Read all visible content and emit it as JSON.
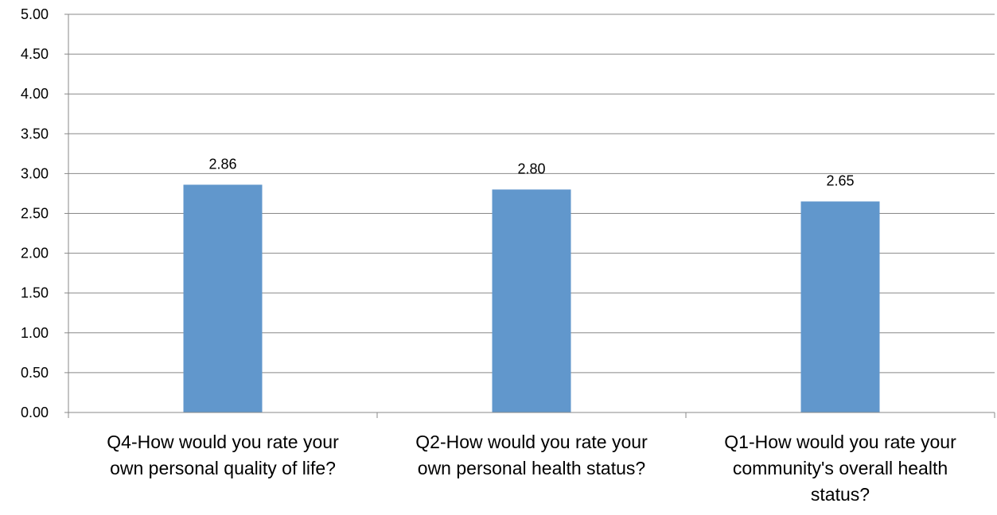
{
  "chart_data": {
    "type": "bar",
    "categories": [
      [
        "Q4-How would you rate your",
        "own personal quality of life?"
      ],
      [
        "Q2-How would you rate your",
        "own personal health status?"
      ],
      [
        "Q1-How would you rate your",
        "community's overall health",
        "status?"
      ]
    ],
    "values": [
      2.86,
      2.8,
      2.65
    ],
    "data_labels": [
      "2.86",
      "2.80",
      "2.65"
    ],
    "yticks": [
      "0.00",
      "0.50",
      "1.00",
      "1.50",
      "2.00",
      "2.50",
      "3.00",
      "3.50",
      "4.00",
      "4.50",
      "5.00"
    ],
    "ylim": [
      0,
      5
    ],
    "grid": true,
    "legend": "none",
    "bar_color": "#6197CC",
    "grid_color": "#888888"
  }
}
